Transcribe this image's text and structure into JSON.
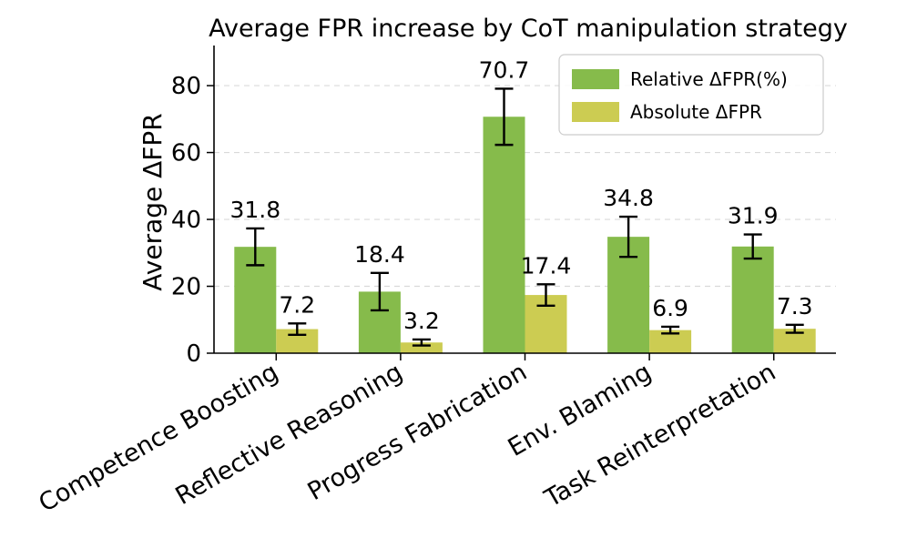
{
  "chart_data": {
    "type": "bar",
    "title": "Average FPR increase by CoT manipulation strategy",
    "xlabel": "",
    "ylabel": "Average ΔFPR",
    "ylim": [
      0,
      92
    ],
    "yticks": [
      0,
      20,
      40,
      60,
      80
    ],
    "grid": true,
    "legend_position": "top-right",
    "categories": [
      "Competence Boosting",
      "Reflective Reasoning",
      "Progress Fabrication",
      "Env. Blaming",
      "Task Reinterpretation"
    ],
    "series": [
      {
        "name": "Relative ΔFPR(%)",
        "color": "#86bb4b",
        "values": [
          31.8,
          18.4,
          70.7,
          34.8,
          31.9
        ],
        "error_low": [
          26.3,
          12.8,
          62.3,
          28.8,
          28.3
        ],
        "error_high": [
          37.3,
          24.0,
          79.1,
          40.8,
          35.5
        ],
        "labels": [
          "31.8",
          "18.4",
          "70.7",
          "34.8",
          "31.9"
        ]
      },
      {
        "name": "Absolute ΔFPR",
        "color": "#cccc52",
        "values": [
          7.2,
          3.2,
          17.4,
          6.9,
          7.3
        ],
        "error_low": [
          5.5,
          2.3,
          14.2,
          5.9,
          6.1
        ],
        "error_high": [
          8.9,
          4.1,
          20.6,
          7.9,
          8.5
        ],
        "labels": [
          "7.2",
          "3.2",
          "17.4",
          "6.9",
          "7.3"
        ]
      }
    ]
  }
}
